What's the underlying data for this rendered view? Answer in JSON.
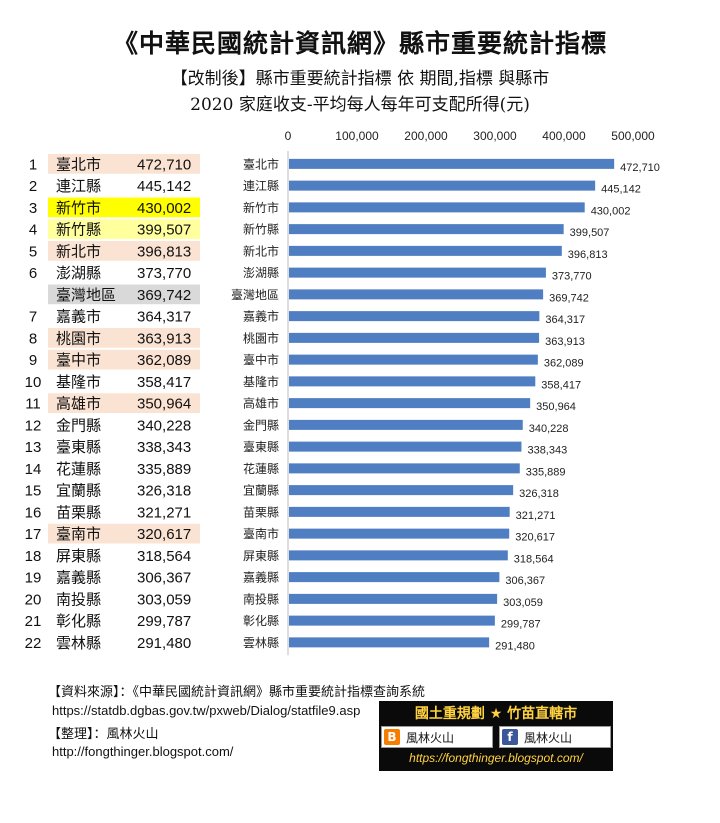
{
  "header": {
    "title": "《中華民國統計資訊網》縣市重要統計指標",
    "subtitle": "【改制後】縣市重要統計指標 依 期間,指標 與縣市",
    "subtitle2": "2020 家庭收支-平均每人每年可支配所得(元)"
  },
  "chart_data": {
    "type": "bar",
    "orientation": "horizontal",
    "xlim": [
      0,
      500000
    ],
    "x_ticks": [
      "0",
      "100,000",
      "200,000",
      "300,000",
      "400,000",
      "500,000"
    ],
    "bar_color": "#4f7ec3",
    "rows": [
      {
        "rank": "1",
        "name": "臺北市",
        "value": 472710,
        "value_label": "472,710",
        "highlight": "peach"
      },
      {
        "rank": "2",
        "name": "連江縣",
        "value": 445142,
        "value_label": "445,142",
        "highlight": "none"
      },
      {
        "rank": "3",
        "name": "新竹市",
        "value": 430002,
        "value_label": "430,002",
        "highlight": "yellow"
      },
      {
        "rank": "4",
        "name": "新竹縣",
        "value": 399507,
        "value_label": "399,507",
        "highlight": "lightyellow"
      },
      {
        "rank": "5",
        "name": "新北市",
        "value": 396813,
        "value_label": "396,813",
        "highlight": "peach"
      },
      {
        "rank": "6",
        "name": "澎湖縣",
        "value": 373770,
        "value_label": "373,770",
        "highlight": "none"
      },
      {
        "rank": "",
        "name": "臺灣地區",
        "value": 369742,
        "value_label": "369,742",
        "highlight": "gray"
      },
      {
        "rank": "7",
        "name": "嘉義市",
        "value": 364317,
        "value_label": "364,317",
        "highlight": "none"
      },
      {
        "rank": "8",
        "name": "桃園市",
        "value": 363913,
        "value_label": "363,913",
        "highlight": "peach"
      },
      {
        "rank": "9",
        "name": "臺中市",
        "value": 362089,
        "value_label": "362,089",
        "highlight": "peach"
      },
      {
        "rank": "10",
        "name": "基隆市",
        "value": 358417,
        "value_label": "358,417",
        "highlight": "none"
      },
      {
        "rank": "11",
        "name": "高雄市",
        "value": 350964,
        "value_label": "350,964",
        "highlight": "peach"
      },
      {
        "rank": "12",
        "name": "金門縣",
        "value": 340228,
        "value_label": "340,228",
        "highlight": "none"
      },
      {
        "rank": "13",
        "name": "臺東縣",
        "value": 338343,
        "value_label": "338,343",
        "highlight": "none"
      },
      {
        "rank": "14",
        "name": "花蓮縣",
        "value": 335889,
        "value_label": "335,889",
        "highlight": "none"
      },
      {
        "rank": "15",
        "name": "宜蘭縣",
        "value": 326318,
        "value_label": "326,318",
        "highlight": "none"
      },
      {
        "rank": "16",
        "name": "苗栗縣",
        "value": 321271,
        "value_label": "321,271",
        "highlight": "none"
      },
      {
        "rank": "17",
        "name": "臺南市",
        "value": 320617,
        "value_label": "320,617",
        "highlight": "peach"
      },
      {
        "rank": "18",
        "name": "屏東縣",
        "value": 318564,
        "value_label": "318,564",
        "highlight": "none"
      },
      {
        "rank": "19",
        "name": "嘉義縣",
        "value": 306367,
        "value_label": "306,367",
        "highlight": "none"
      },
      {
        "rank": "20",
        "name": "南投縣",
        "value": 303059,
        "value_label": "303,059",
        "highlight": "none"
      },
      {
        "rank": "21",
        "name": "彰化縣",
        "value": 299787,
        "value_label": "299,787",
        "highlight": "none"
      },
      {
        "rank": "22",
        "name": "雲林縣",
        "value": 291480,
        "value_label": "291,480",
        "highlight": "none"
      }
    ],
    "highlight_colors": {
      "peach": "#fbe3d3",
      "yellow": "#ffff00",
      "lightyellow": "#ffff9e",
      "gray": "#d9d9d9",
      "none": "#ffffff"
    }
  },
  "footer": {
    "source_label": "【資料來源】：《中華民國統計資訊網》縣市重要統計指標查詢系統",
    "source_url": "https://statdb.dgbas.gov.tw/pxweb/Dialog/statfile9.asp",
    "editor_label": "【整理】：風林火山",
    "blog_url": "http://fongthinger.blogspot.com/"
  },
  "banner": {
    "title": "國土重規劃 ★ 竹苗直轄市",
    "blogger_label": "風林火山",
    "facebook_label": "風林火山",
    "url": "https://fongthinger.blogspot.com/",
    "blogger_icon": "blogger-icon",
    "facebook_icon": "facebook-icon"
  }
}
